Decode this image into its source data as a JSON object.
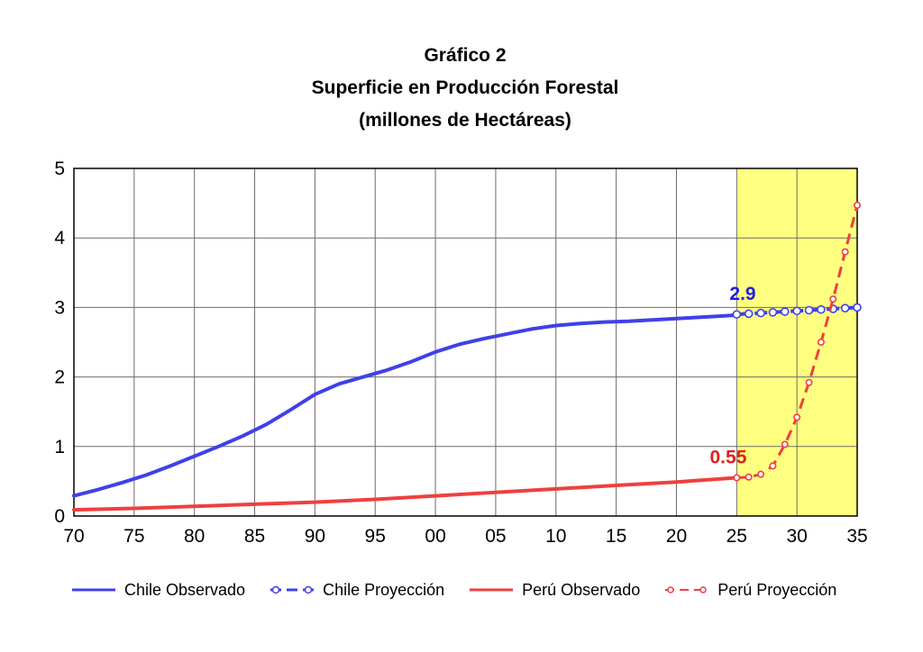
{
  "chart_data": {
    "type": "line",
    "title": "Gráfico 2",
    "subtitle": "Superficie en Producción Forestal",
    "subtitle2": "(millones de Hectáreas)",
    "xlim": [
      70,
      135
    ],
    "ylim": [
      0,
      5
    ],
    "x_ticks": [
      70,
      75,
      80,
      85,
      90,
      95,
      100,
      105,
      110,
      115,
      120,
      125,
      130,
      135
    ],
    "x_tick_labels": [
      "70",
      "75",
      "80",
      "85",
      "90",
      "95",
      "00",
      "05",
      "10",
      "15",
      "20",
      "25",
      "30",
      "35"
    ],
    "y_ticks": [
      0,
      1,
      2,
      3,
      4,
      5
    ],
    "y_tick_labels": [
      "0",
      "1",
      "2",
      "3",
      "4",
      "5"
    ],
    "grid": true,
    "highlight_region": {
      "x_from": 125,
      "x_to": 135,
      "color": "#FFFF80"
    },
    "series": [
      {
        "name": "Chile Observado",
        "color": "#4040E8",
        "style": "solid",
        "x": [
          70,
          72,
          74,
          76,
          78,
          80,
          82,
          84,
          86,
          88,
          90,
          92,
          94,
          96,
          98,
          100,
          102,
          104,
          106,
          108,
          110,
          112,
          114,
          116,
          118,
          120,
          122,
          124,
          125
        ],
        "y": [
          0.29,
          0.38,
          0.48,
          0.59,
          0.72,
          0.86,
          1.0,
          1.15,
          1.32,
          1.53,
          1.75,
          1.9,
          2.0,
          2.1,
          2.22,
          2.36,
          2.47,
          2.55,
          2.62,
          2.69,
          2.74,
          2.77,
          2.79,
          2.8,
          2.82,
          2.84,
          2.86,
          2.88,
          2.89
        ]
      },
      {
        "name": "Chile Proyección",
        "color": "#4040E8",
        "style": "dashed-markers",
        "x": [
          125,
          126,
          127,
          128,
          129,
          130,
          131,
          132,
          133,
          134,
          135
        ],
        "y": [
          2.9,
          2.91,
          2.92,
          2.93,
          2.94,
          2.95,
          2.96,
          2.97,
          2.98,
          2.99,
          3.0
        ]
      },
      {
        "name": "Perú Observado",
        "color": "#EE4040",
        "style": "solid",
        "x": [
          70,
          75,
          80,
          85,
          90,
          95,
          100,
          105,
          110,
          115,
          120,
          125
        ],
        "y": [
          0.09,
          0.11,
          0.14,
          0.17,
          0.2,
          0.24,
          0.29,
          0.34,
          0.39,
          0.44,
          0.49,
          0.55
        ]
      },
      {
        "name": "Perú Proyección",
        "color": "#EE4040",
        "style": "dashed-markers",
        "x": [
          125,
          126,
          127,
          128,
          129,
          130,
          131,
          132,
          133,
          134,
          135
        ],
        "y": [
          0.55,
          0.56,
          0.6,
          0.72,
          1.03,
          1.42,
          1.92,
          2.5,
          3.12,
          3.8,
          4.47
        ]
      }
    ],
    "annotations": [
      {
        "text": "2.9",
        "x": 125.5,
        "y": 2.9,
        "color": "#2020E0"
      },
      {
        "text": "0.55",
        "x": 124.3,
        "y": 0.55,
        "color": "#E02020"
      }
    ]
  }
}
